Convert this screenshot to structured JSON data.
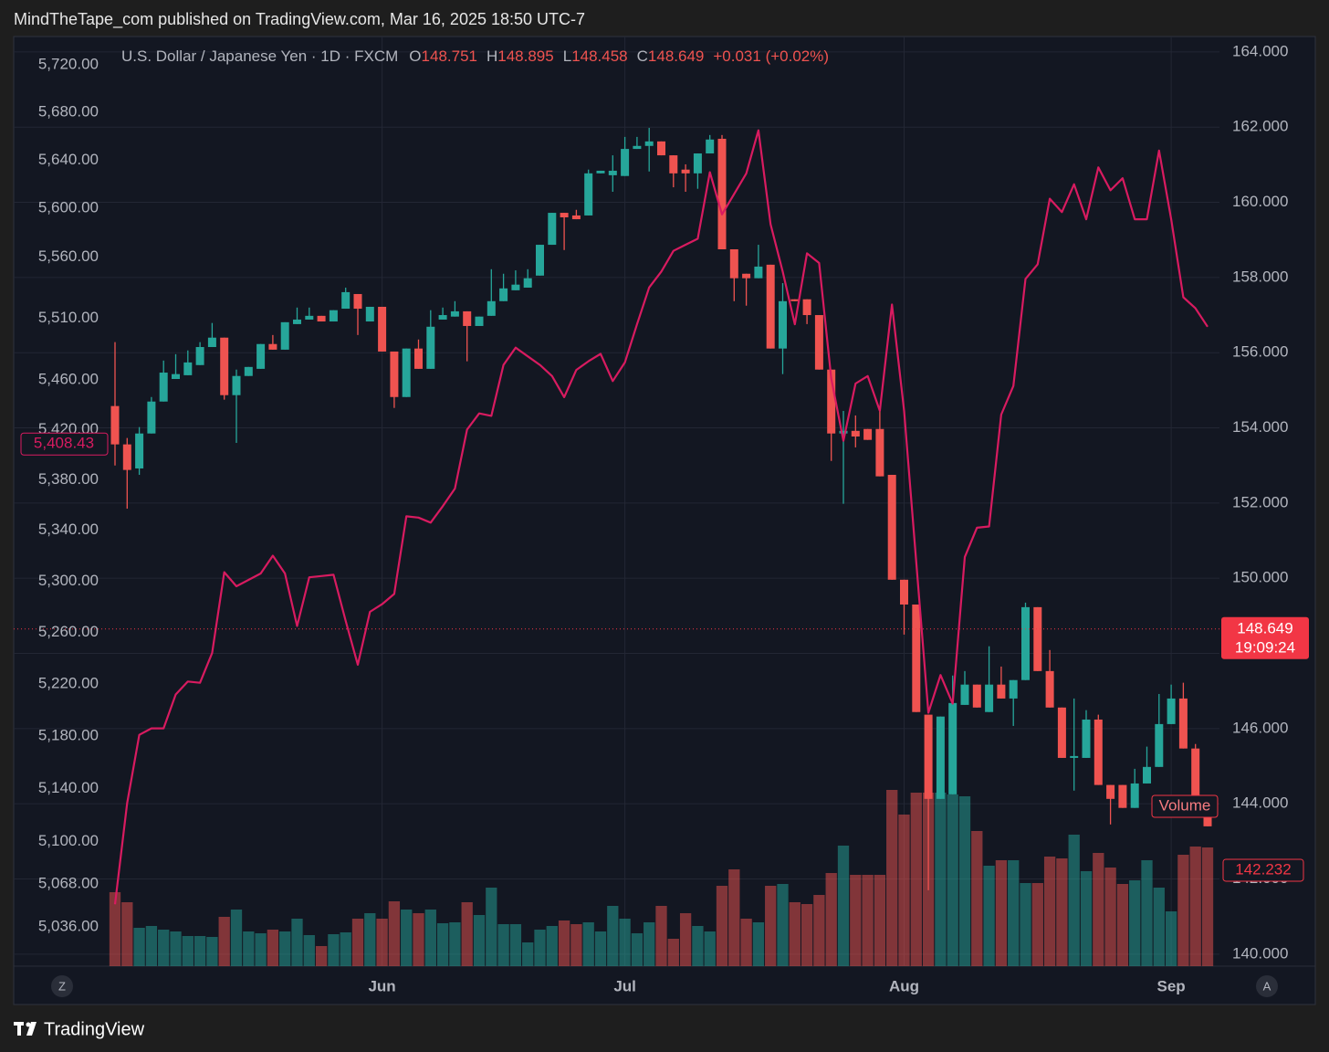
{
  "chart_data": {
    "type": "candlestick",
    "header": "MindTheTape_com published on TradingView.com, Mar 16, 2025 18:50 UTC-7",
    "brand": "TradingView",
    "legend": {
      "symbol": "U.S. Dollar / Japanese Yen · 1D · FXCM",
      "o_label": "O",
      "open": 148.751,
      "h_label": "H",
      "high": 148.895,
      "l_label": "L",
      "low": 148.458,
      "c_label": "C",
      "close": 148.649,
      "change": "+0.031 (+0.02%)"
    },
    "categories": [
      null,
      null,
      null,
      null,
      null,
      null,
      null,
      null,
      null,
      null,
      null,
      null,
      null,
      null,
      null,
      null,
      null,
      null,
      null,
      null,
      null,
      null,
      "Jun",
      null,
      null,
      null,
      null,
      null,
      null,
      null,
      null,
      null,
      null,
      null,
      null,
      null,
      null,
      null,
      null,
      null,
      null,
      null,
      "Jul",
      null,
      null,
      null,
      null,
      null,
      null,
      null,
      null,
      null,
      null,
      null,
      null,
      null,
      null,
      null,
      null,
      null,
      null,
      null,
      null,
      null,
      null,
      "Aug",
      null,
      null,
      null,
      null,
      null,
      null,
      null,
      null,
      null,
      null,
      null,
      null,
      null,
      null,
      null,
      null,
      null,
      null,
      null,
      null,
      null,
      "Sep",
      null,
      null,
      null
    ],
    "candles": {
      "up_color": "#26a69a",
      "down_color": "#ef5350",
      "open": [
        154.58,
        153.56,
        152.92,
        153.85,
        154.7,
        155.3,
        155.4,
        155.67,
        156.15,
        156.4,
        154.87,
        155.38,
        155.57,
        156.23,
        156.08,
        156.76,
        156.88,
        156.98,
        156.83,
        157.17,
        157.56,
        156.83,
        157.22,
        156.03,
        154.82,
        156.11,
        155.57,
        156.88,
        156.96,
        157.1,
        156.71,
        156.98,
        157.37,
        157.66,
        157.73,
        158.05,
        158.87,
        159.72,
        159.65,
        159.65,
        160.77,
        160.72,
        160.7,
        161.42,
        161.5,
        161.62,
        161.25,
        160.87,
        160.77,
        161.3,
        161.69,
        158.75,
        158.1,
        157.98,
        158.34,
        156.11,
        157.42,
        157.42,
        157.0,
        155.55,
        153.85,
        153.92,
        153.97,
        153.97,
        152.75,
        149.96,
        149.3,
        146.37,
        144.13,
        144.25,
        146.63,
        147.17,
        146.44,
        147.17,
        146.8,
        147.29,
        149.23,
        147.53,
        146.56,
        145.22,
        145.22,
        146.24,
        144.5,
        144.5,
        143.89,
        144.54,
        144.98,
        146.12,
        146.8,
        145.47,
        144.13
      ],
      "high": [
        156.28,
        153.73,
        154.02,
        154.82,
        155.79,
        155.96,
        156.06,
        156.28,
        156.79,
        156.4,
        155.55,
        155.62,
        156.23,
        156.47,
        156.81,
        157.2,
        157.2,
        156.98,
        157.13,
        157.73,
        157.56,
        157.22,
        157.22,
        156.03,
        156.11,
        156.35,
        157.13,
        157.2,
        157.37,
        157.1,
        156.96,
        158.22,
        158.1,
        158.19,
        158.22,
        158.87,
        159.72,
        159.72,
        159.8,
        160.87,
        160.84,
        161.25,
        161.74,
        161.74,
        161.98,
        161.62,
        161.25,
        161.01,
        161.3,
        161.79,
        161.79,
        158.75,
        158.1,
        158.87,
        158.34,
        157.85,
        157.42,
        157.42,
        157.0,
        155.55,
        154.45,
        154.33,
        153.97,
        154.45,
        152.75,
        149.96,
        149.3,
        146.37,
        146.32,
        147.41,
        147.53,
        147.17,
        148.19,
        147.65,
        147.29,
        149.35,
        149.23,
        148.09,
        146.56,
        146.8,
        146.49,
        146.37,
        144.5,
        144.5,
        144.93,
        145.52,
        146.92,
        147.17,
        147.22,
        145.59,
        144.13
      ],
      "low": [
        153.0,
        151.85,
        152.75,
        153.85,
        154.7,
        155.3,
        155.4,
        155.67,
        156.15,
        154.75,
        153.6,
        155.38,
        155.57,
        156.08,
        156.08,
        156.76,
        156.88,
        156.83,
        156.83,
        157.17,
        156.47,
        156.83,
        156.03,
        154.53,
        154.82,
        155.57,
        155.57,
        156.88,
        156.96,
        155.77,
        156.71,
        156.98,
        157.37,
        157.66,
        157.73,
        158.05,
        158.87,
        158.73,
        159.55,
        159.65,
        160.77,
        160.28,
        160.7,
        161.42,
        160.82,
        161.25,
        160.4,
        160.28,
        160.36,
        161.3,
        158.75,
        157.37,
        157.25,
        157.98,
        156.11,
        155.43,
        157.37,
        156.76,
        155.55,
        153.12,
        151.98,
        153.48,
        153.68,
        152.71,
        149.96,
        148.5,
        146.44,
        141.7,
        144.13,
        144.25,
        146.63,
        146.56,
        146.44,
        146.8,
        146.07,
        147.29,
        147.53,
        146.56,
        145.22,
        144.35,
        145.22,
        144.5,
        143.45,
        143.89,
        143.89,
        144.54,
        144.98,
        146.12,
        145.47,
        144.13,
        143.4
      ],
      "close": [
        153.56,
        152.88,
        153.85,
        154.7,
        155.47,
        155.43,
        155.74,
        156.15,
        156.4,
        154.87,
        155.38,
        155.62,
        156.23,
        156.08,
        156.81,
        156.88,
        156.98,
        156.83,
        157.13,
        157.61,
        157.17,
        157.22,
        156.03,
        154.82,
        156.11,
        155.57,
        156.69,
        157.0,
        157.1,
        156.71,
        156.96,
        157.37,
        157.71,
        157.81,
        157.98,
        158.87,
        159.72,
        159.6,
        159.55,
        160.77,
        160.84,
        160.84,
        161.42,
        161.5,
        161.62,
        161.25,
        160.77,
        160.77,
        161.3,
        161.67,
        158.75,
        157.98,
        157.98,
        158.29,
        156.11,
        157.37,
        157.37,
        157.0,
        155.55,
        153.85,
        153.92,
        153.77,
        153.68,
        152.71,
        149.96,
        149.3,
        146.44,
        144.13,
        146.32,
        146.68,
        147.17,
        146.56,
        147.17,
        146.8,
        147.29,
        149.23,
        147.53,
        146.56,
        145.22,
        145.27,
        146.24,
        144.5,
        144.13,
        143.89,
        144.54,
        144.98,
        146.12,
        146.8,
        145.47,
        144.13,
        143.4
      ]
    },
    "overlay": {
      "color": "#d81b60",
      "axis": "y2",
      "values": [
        5053,
        5129,
        5181,
        5186,
        5186,
        5212,
        5222,
        5221,
        5244,
        5307,
        5296,
        5301,
        5306,
        5320,
        5306,
        5265,
        5303,
        5304,
        5305,
        5269,
        5235,
        5276,
        5282,
        5290,
        5351,
        5350,
        5346,
        5359,
        5373,
        5420,
        5433,
        5431,
        5472,
        5486,
        5479,
        5472,
        5463,
        5446,
        5468,
        5475,
        5481,
        5459,
        5474,
        5505,
        5535,
        5548,
        5565,
        5570,
        5575,
        5630,
        5595,
        5612,
        5629,
        5665,
        5587,
        5548,
        5505,
        5563,
        5555,
        5461,
        5411,
        5457,
        5463,
        5435,
        5521,
        5435,
        5315,
        5198,
        5227,
        5205,
        5319,
        5342,
        5343,
        5432,
        5455,
        5542,
        5554,
        5608,
        5597,
        5620,
        5591,
        5634,
        5615,
        5625,
        5591,
        5591,
        5648,
        5591,
        5527,
        5518,
        5503
      ],
      "last_label": {
        "value": 5408.43,
        "label": "5,408.43"
      }
    },
    "volume": {
      "name": "Volume",
      "values": [
        81,
        70,
        42,
        44,
        40,
        38,
        33,
        33,
        32,
        54,
        62,
        38,
        36,
        40,
        38,
        52,
        34,
        22,
        35,
        37,
        52,
        58,
        52,
        71,
        62,
        58,
        62,
        47,
        48,
        70,
        56,
        86,
        46,
        46,
        26,
        40,
        44,
        50,
        46,
        48,
        38,
        66,
        52,
        36,
        48,
        66,
        30,
        58,
        44,
        38,
        88,
        106,
        52,
        48,
        88,
        90,
        70,
        68,
        78,
        102,
        132,
        100,
        100,
        100,
        193,
        166,
        190,
        190,
        190,
        188,
        186,
        148,
        110,
        116,
        116,
        91,
        91,
        120,
        118,
        144,
        104,
        124,
        108,
        90,
        94,
        116,
        86,
        60,
        122,
        131,
        130
      ]
    },
    "price_line": {
      "value": 148.649,
      "timer": "19:09:24",
      "color": "#f23645"
    },
    "marker": {
      "value": 142.232,
      "label": "142.232"
    },
    "ylim": [
      139.68,
      164.41
    ],
    "yticks": [
      {
        "value": 140,
        "label": "140.000"
      },
      {
        "value": 142,
        "label": "142.000"
      },
      {
        "value": 144,
        "label": "144.000"
      },
      {
        "value": 146,
        "label": "146.000"
      },
      {
        "value": 148,
        "label": "148.000"
      },
      {
        "value": 150,
        "label": "150.000"
      },
      {
        "value": 152,
        "label": "152.000"
      },
      {
        "value": 154,
        "label": "154.000"
      },
      {
        "value": 156,
        "label": "156.000"
      },
      {
        "value": 158,
        "label": "158.000"
      },
      {
        "value": 160,
        "label": "160.000"
      },
      {
        "value": 162,
        "label": "162.000"
      },
      {
        "value": 164,
        "label": "164.000"
      }
    ],
    "y2lim": [
      5007,
      5744
    ],
    "y2_log": true,
    "y2ticks": [
      {
        "value": 5720,
        "label": "5,720.00"
      },
      {
        "value": 5680,
        "label": "5,680.00"
      },
      {
        "value": 5640,
        "label": "5,640.00"
      },
      {
        "value": 5600,
        "label": "5,600.00"
      },
      {
        "value": 5560,
        "label": "5,560.00"
      },
      {
        "value": 5510,
        "label": "5,510.00"
      },
      {
        "value": 5460,
        "label": "5,460.00"
      },
      {
        "value": 5420,
        "label": "5,420.00"
      },
      {
        "value": 5380,
        "label": "5,380.00"
      },
      {
        "value": 5340,
        "label": "5,340.00"
      },
      {
        "value": 5300,
        "label": "5,300.00"
      },
      {
        "value": 5260,
        "label": "5,260.00"
      },
      {
        "value": 5220,
        "label": "5,220.00"
      },
      {
        "value": 5180,
        "label": "5,180.00"
      },
      {
        "value": 5140,
        "label": "5,140.00"
      },
      {
        "value": 5100,
        "label": "5,100.00"
      },
      {
        "value": 5068,
        "label": "5,068.00"
      },
      {
        "value": 5036,
        "label": "5,036.00"
      }
    ],
    "grid": true,
    "left_button": "Z",
    "right_button": "A"
  }
}
